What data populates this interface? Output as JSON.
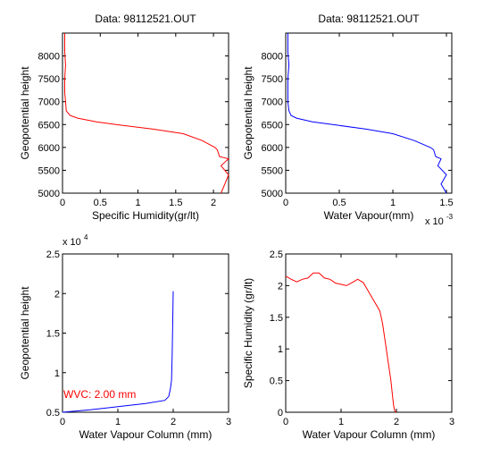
{
  "chart_data": [
    {
      "type": "line",
      "title": "Data: 98112521.OUT",
      "xlabel": "Specific Humidity(gr/lt)",
      "ylabel": "Geopotential height",
      "xlim": [
        0,
        2.2
      ],
      "ylim": [
        5000,
        8500
      ],
      "xticks": [
        0,
        0.5,
        1,
        1.5,
        2
      ],
      "yticks": [
        5000,
        5500,
        6000,
        6500,
        7000,
        7500,
        8000
      ],
      "xtick_labels": [
        "0",
        "0.5",
        "1",
        "1.5",
        "2"
      ],
      "ytick_labels": [
        "5000",
        "5500",
        "6000",
        "6500",
        "7000",
        "7500",
        "8000"
      ],
      "series": [
        {
          "color": "#ff0000",
          "x": [
            2.1,
            2.15,
            2.2,
            2.1,
            2.2,
            2.08,
            2.05,
            2.02,
            1.85,
            1.6,
            1.2,
            0.8,
            0.45,
            0.2,
            0.1,
            0.05,
            0.04,
            0.03,
            0.03,
            0.04,
            0.03,
            0.03,
            0.03
          ],
          "y": [
            5000,
            5200,
            5400,
            5600,
            5750,
            5800,
            5950,
            6000,
            6150,
            6300,
            6400,
            6480,
            6560,
            6640,
            6700,
            6800,
            7000,
            7200,
            7500,
            7800,
            8100,
            8300,
            8500
          ]
        }
      ]
    },
    {
      "type": "line",
      "title": "Data: 98112521.OUT",
      "xlabel": "Water Vapour(mm)",
      "ylabel": "Geopotential height",
      "x_multiplier": "x 10",
      "x_exponent": "-3",
      "xlim": [
        0,
        1.55
      ],
      "ylim": [
        5000,
        8500
      ],
      "xticks": [
        0,
        0.5,
        1,
        1.5
      ],
      "yticks": [
        5000,
        5500,
        6000,
        6500,
        7000,
        7500,
        8000
      ],
      "xtick_labels": [
        "0",
        "0.5",
        "1",
        "1.5"
      ],
      "ytick_labels": [
        "5000",
        "5500",
        "6000",
        "6500",
        "7000",
        "7500",
        "8000"
      ],
      "series": [
        {
          "color": "#0000ff",
          "x": [
            1.5,
            1.45,
            1.5,
            1.42,
            1.45,
            1.4,
            1.38,
            1.35,
            1.2,
            1.0,
            0.75,
            0.5,
            0.25,
            0.1,
            0.05,
            0.03,
            0.02,
            0.02,
            0.02,
            0.03,
            0.02,
            0.02,
            0.02
          ],
          "y": [
            5000,
            5200,
            5400,
            5600,
            5750,
            5800,
            5950,
            6000,
            6150,
            6300,
            6400,
            6480,
            6560,
            6640,
            6700,
            6800,
            7000,
            7200,
            7500,
            7800,
            8100,
            8300,
            8500
          ]
        }
      ]
    },
    {
      "type": "line",
      "title": "",
      "xlabel": "Water Vapour Column (mm)",
      "ylabel": "Geopotential height",
      "y_multiplier": "x 10",
      "y_exponent": "4",
      "xlim": [
        0,
        3
      ],
      "ylim": [
        0.5,
        2.5
      ],
      "xticks": [
        0,
        1,
        2,
        3
      ],
      "yticks": [
        0.5,
        1,
        1.5,
        2,
        2.5
      ],
      "xtick_labels": [
        "0",
        "1",
        "2",
        "3"
      ],
      "ytick_labels": [
        "0.5",
        "1",
        "1.5",
        "2",
        "2.5"
      ],
      "annotation": "WVC: 2.00 mm",
      "annotation_color": "#ff0000",
      "series": [
        {
          "color": "#0000ff",
          "x": [
            0,
            0.5,
            1.0,
            1.5,
            1.85,
            1.92,
            1.95,
            1.97,
            1.98,
            1.99,
            2.0
          ],
          "y": [
            0.5,
            0.53,
            0.57,
            0.61,
            0.65,
            0.7,
            0.8,
            0.9,
            1.2,
            1.6,
            2.03
          ]
        }
      ]
    },
    {
      "type": "line",
      "title": "",
      "xlabel": "Water Vapour Column (mm)",
      "ylabel": "Specific Humidity (gr/lt)",
      "xlim": [
        0,
        3
      ],
      "ylim": [
        0,
        2.5
      ],
      "xticks": [
        0,
        1,
        2,
        3
      ],
      "yticks": [
        0,
        0.5,
        1,
        1.5,
        2,
        2.5
      ],
      "xtick_labels": [
        "0",
        "1",
        "2",
        "3"
      ],
      "ytick_labels": [
        "0",
        "0.5",
        "1",
        "1.5",
        "2",
        "2.5"
      ],
      "series": [
        {
          "color": "#ff0000",
          "x": [
            0,
            0.1,
            0.2,
            0.3,
            0.4,
            0.5,
            0.6,
            0.7,
            0.8,
            0.9,
            1.0,
            1.1,
            1.2,
            1.3,
            1.4,
            1.5,
            1.6,
            1.7,
            1.75,
            1.8,
            1.85,
            1.9,
            1.93,
            1.95,
            1.97,
            2.0
          ],
          "y": [
            2.15,
            2.1,
            2.06,
            2.1,
            2.12,
            2.2,
            2.2,
            2.12,
            2.1,
            2.04,
            2.02,
            2.0,
            2.05,
            2.1,
            2.05,
            1.9,
            1.75,
            1.6,
            1.4,
            1.1,
            0.8,
            0.5,
            0.25,
            0.1,
            0.02,
            0.0
          ]
        }
      ]
    }
  ]
}
